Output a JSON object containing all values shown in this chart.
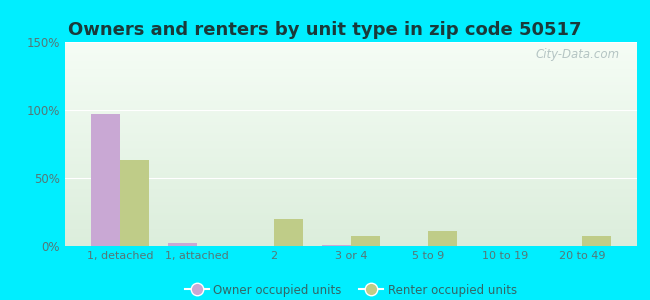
{
  "title": "Owners and renters by unit type in zip code 50517",
  "categories": [
    "1, detached",
    "1, attached",
    "2",
    "3 or 4",
    "5 to 9",
    "10 to 19",
    "20 to 49"
  ],
  "owner_values": [
    97,
    2,
    0,
    1,
    0,
    0,
    0
  ],
  "renter_values": [
    63,
    0,
    20,
    7,
    11,
    0,
    7
  ],
  "owner_color": "#c9a8d4",
  "renter_color": "#bfcc88",
  "background_outer": "#00eeff",
  "ylim": [
    0,
    150
  ],
  "yticks": [
    0,
    50,
    100,
    150
  ],
  "ytick_labels": [
    "0%",
    "50%",
    "100%",
    "150%"
  ],
  "bar_width": 0.38,
  "legend_labels": [
    "Owner occupied units",
    "Renter occupied units"
  ],
  "watermark": "City-Data.com",
  "title_fontsize": 13,
  "title_color": "#1a3a3a"
}
